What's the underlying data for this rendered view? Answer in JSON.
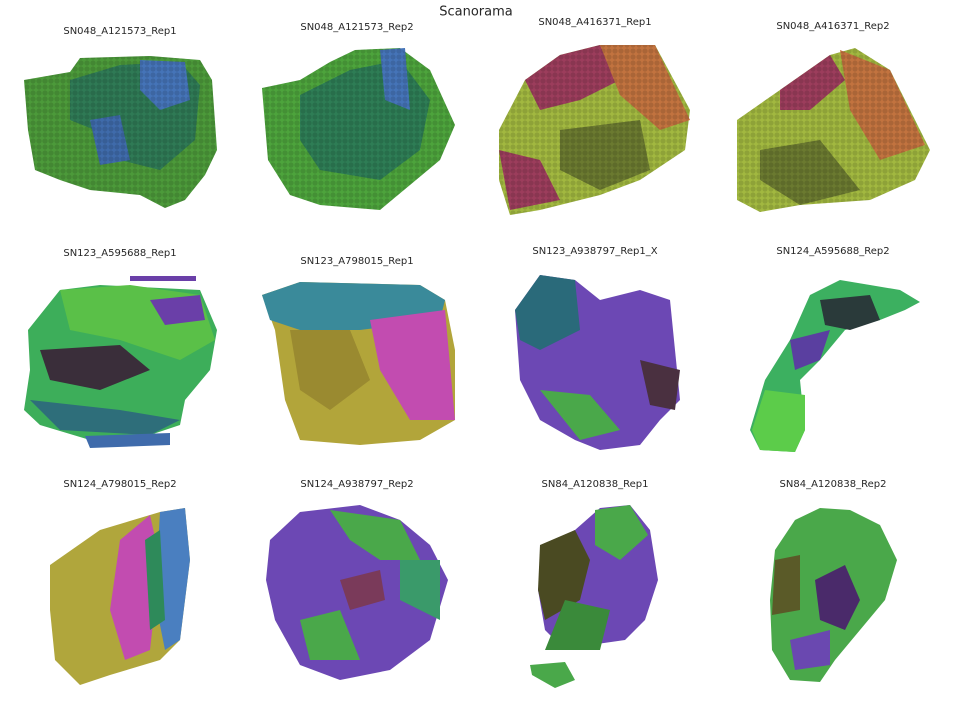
{
  "title": "Scanorama",
  "panels": [
    {
      "title": "SN048_A121573_Rep1"
    },
    {
      "title": "SN048_A121573_Rep2"
    },
    {
      "title": "SN048_A416371_Rep1"
    },
    {
      "title": "SN048_A416371_Rep2"
    },
    {
      "title": "SN123_A595688_Rep1"
    },
    {
      "title": "SN123_A798015_Rep1"
    },
    {
      "title": "SN123_A938797_Rep1_X"
    },
    {
      "title": "SN124_A595688_Rep2"
    },
    {
      "title": "SN124_A798015_Rep2"
    },
    {
      "title": "SN124_A938797_Rep2"
    },
    {
      "title": "SN84_A120838_Rep1"
    },
    {
      "title": "SN84_A120838_Rep2"
    }
  ]
}
